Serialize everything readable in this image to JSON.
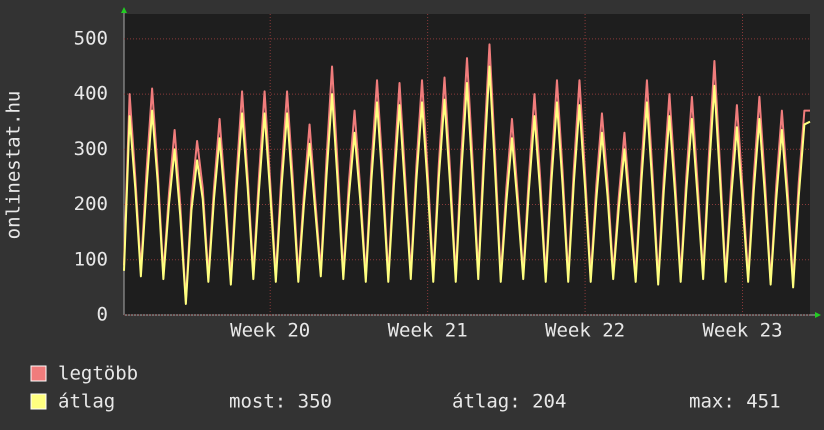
{
  "chart_data": {
    "type": "line",
    "y_label": "onlinestat.hu",
    "ylim": [
      0,
      545
    ],
    "yticks": [
      0,
      100,
      200,
      300,
      400,
      500
    ],
    "grid": true,
    "categories": [
      null,
      null,
      null,
      null,
      null,
      null,
      null,
      null,
      null,
      null,
      null,
      null,
      null,
      null,
      null,
      null,
      null,
      null,
      null,
      null,
      null,
      null,
      null,
      null,
      null,
      null,
      "Week 20",
      null,
      null,
      null,
      null,
      null,
      null,
      null,
      null,
      null,
      null,
      null,
      null,
      null,
      null,
      null,
      null,
      null,
      null,
      null,
      null,
      null,
      null,
      null,
      null,
      null,
      null,
      null,
      "Week 21",
      null,
      null,
      null,
      null,
      null,
      null,
      null,
      null,
      null,
      null,
      null,
      null,
      null,
      null,
      null,
      null,
      null,
      null,
      null,
      null,
      null,
      null,
      null,
      null,
      null,
      null,
      null,
      "Week 22",
      null,
      null,
      null,
      null,
      null,
      null,
      null,
      null,
      null,
      null,
      null,
      null,
      null,
      null,
      null,
      null,
      null,
      null,
      null,
      null,
      null,
      null,
      null,
      null,
      null,
      null,
      null,
      "Week 23",
      null,
      null,
      null,
      null,
      null,
      null,
      null,
      null,
      null,
      null,
      null,
      null
    ],
    "series": [
      {
        "name": "legtöbb",
        "color": "#f07c7c",
        "values": [
          90,
          400,
          250,
          80,
          260,
          410,
          260,
          75,
          220,
          335,
          200,
          25,
          210,
          315,
          230,
          70,
          230,
          355,
          220,
          65,
          250,
          405,
          250,
          75,
          250,
          405,
          240,
          70,
          255,
          405,
          250,
          70,
          220,
          345,
          210,
          80,
          280,
          450,
          270,
          75,
          240,
          370,
          230,
          70,
          270,
          425,
          260,
          70,
          260,
          420,
          250,
          75,
          270,
          425,
          260,
          70,
          275,
          430,
          260,
          70,
          290,
          465,
          280,
          75,
          300,
          490,
          290,
          70,
          230,
          355,
          220,
          75,
          250,
          400,
          250,
          70,
          265,
          425,
          260,
          70,
          265,
          425,
          255,
          70,
          235,
          365,
          240,
          75,
          215,
          330,
          200,
          70,
          265,
          425,
          255,
          65,
          250,
          400,
          245,
          70,
          250,
          395,
          240,
          75,
          285,
          460,
          270,
          70,
          240,
          380,
          230,
          70,
          250,
          395,
          240,
          60,
          235,
          370,
          230,
          60,
          240,
          370,
          370
        ]
      },
      {
        "name": "átlag",
        "color": "#ffff80",
        "values": [
          80,
          360,
          230,
          70,
          230,
          370,
          240,
          65,
          200,
          300,
          180,
          20,
          190,
          280,
          210,
          60,
          210,
          320,
          200,
          55,
          225,
          365,
          230,
          65,
          225,
          365,
          220,
          60,
          230,
          365,
          225,
          60,
          200,
          310,
          190,
          70,
          250,
          400,
          240,
          65,
          215,
          330,
          210,
          60,
          245,
          385,
          235,
          60,
          235,
          380,
          225,
          65,
          245,
          385,
          235,
          60,
          250,
          390,
          235,
          60,
          260,
          420,
          250,
          65,
          270,
          450,
          260,
          60,
          205,
          320,
          200,
          65,
          225,
          360,
          225,
          60,
          240,
          385,
          235,
          60,
          240,
          380,
          230,
          60,
          210,
          330,
          215,
          65,
          195,
          300,
          180,
          60,
          240,
          385,
          230,
          55,
          225,
          360,
          220,
          60,
          225,
          355,
          215,
          65,
          255,
          415,
          245,
          60,
          215,
          340,
          205,
          60,
          225,
          355,
          215,
          55,
          210,
          335,
          205,
          50,
          215,
          345,
          350
        ]
      }
    ],
    "stats": [
      "most: 350",
      "átlag: 204",
      "max: 451"
    ]
  }
}
